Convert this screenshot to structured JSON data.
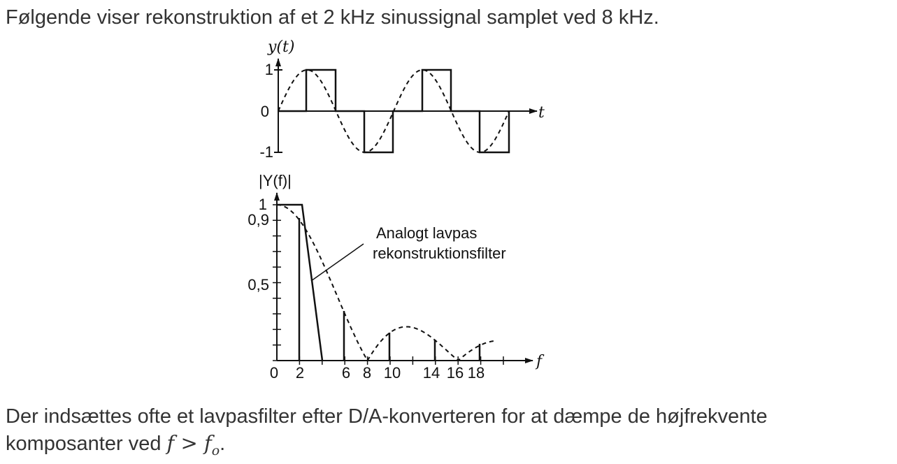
{
  "text": {
    "intro": "Følgende viser rekonstruktion af et 2 kHz sinussignal samplet ved 8 kHz.",
    "outro_line1": "Der indsættes ofte et lavpasfilter efter D/A-konverteren for at dæmpe de højfrekvente",
    "outro_line2_text": "komposanter ved ",
    "outro_line2_math": "f > f",
    "outro_line2_sub": "o",
    "outro_line2_end": "."
  },
  "time_plot": {
    "ylabel": "y(t)",
    "xlabel": "t",
    "yticks": [
      "1",
      "0",
      "-1"
    ]
  },
  "freq_plot": {
    "ylabel": "|Y(f)|",
    "xlabel": "f",
    "yticks": [
      "1",
      "0,9",
      "0,5"
    ],
    "xticks": [
      "0",
      "2",
      "6",
      "8",
      "10",
      "14",
      "16",
      "18"
    ],
    "annotation_line1": "Analogt lavpas",
    "annotation_line2": "rekonstruktionsfilter"
  },
  "colors": {
    "ink": "#111111",
    "text": "#333333"
  }
}
